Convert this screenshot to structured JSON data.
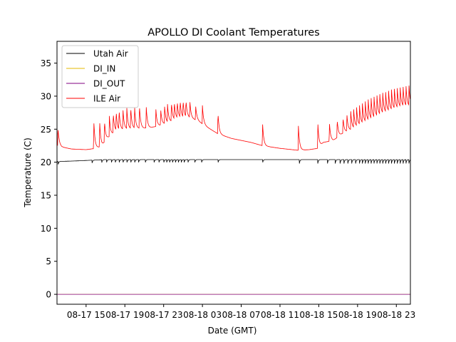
{
  "chart_data": {
    "type": "line",
    "title": "APOLLO DI Coolant Temperatures",
    "xlabel": "Date (GMT)",
    "ylabel": "Temperature (C)",
    "x_units": "hours since 08-17 00:00 GMT",
    "xlim": [
      12.0,
      48.45
    ],
    "ylim": [
      -1.5,
      38.3
    ],
    "x_ticks": [
      {
        "value": 15,
        "label": "08-17 15"
      },
      {
        "value": 19,
        "label": "08-17 19"
      },
      {
        "value": 23,
        "label": "08-17 23"
      },
      {
        "value": 27,
        "label": "08-18 03"
      },
      {
        "value": 31,
        "label": "08-18 07"
      },
      {
        "value": 35,
        "label": "08-18 11"
      },
      {
        "value": 39,
        "label": "08-18 15"
      },
      {
        "value": 43,
        "label": "08-18 19"
      },
      {
        "value": 47,
        "label": "08-18 23"
      }
    ],
    "y_ticks": [
      0,
      5,
      10,
      15,
      20,
      25,
      30,
      35
    ],
    "grid": false,
    "legend_position": "top-left",
    "series": [
      {
        "name": "Utah Air",
        "color": "#000000",
        "baseline": [
          [
            12.0,
            20.1
          ],
          [
            14.0,
            20.2
          ],
          [
            15.5,
            20.3
          ],
          [
            17.0,
            20.4
          ],
          [
            20.0,
            20.4
          ],
          [
            24.0,
            20.4
          ],
          [
            28.0,
            20.4
          ],
          [
            32.0,
            20.4
          ],
          [
            36.0,
            20.4
          ],
          [
            40.0,
            20.4
          ],
          [
            44.0,
            20.4
          ],
          [
            48.45,
            20.4
          ]
        ],
        "dip_times": [
          12.1,
          15.6,
          16.6,
          17.1,
          17.6,
          18.0,
          18.4,
          18.8,
          19.2,
          19.6,
          20.0,
          20.4,
          21.1,
          22.0,
          22.5,
          23.0,
          23.3,
          23.6,
          23.9,
          24.2,
          24.5,
          24.8,
          25.1,
          25.5,
          26.2,
          26.9,
          28.6,
          33.2,
          37.0,
          38.9,
          39.9,
          40.7,
          41.2,
          41.6,
          42.0,
          42.4,
          42.8,
          43.2,
          43.5,
          43.8,
          44.1,
          44.4,
          44.7,
          45.0,
          45.3,
          45.6,
          45.9,
          46.2,
          46.5,
          46.8,
          47.1,
          47.4,
          47.7,
          48.0,
          48.3
        ],
        "dip_depth": 0.6
      },
      {
        "name": "DI_IN",
        "color": "#e6b800",
        "points": [
          [
            12.0,
            0.0
          ],
          [
            48.45,
            0.0
          ]
        ]
      },
      {
        "name": "DI_OUT",
        "color": "#800080",
        "points": [
          [
            12.0,
            0.0
          ],
          [
            48.45,
            0.0
          ]
        ]
      },
      {
        "name": "ILE Air",
        "color": "#ff0000",
        "baseline": [
          [
            12.0,
            22.6
          ],
          [
            12.5,
            22.3
          ],
          [
            13.5,
            22.0
          ],
          [
            15.0,
            21.9
          ],
          [
            16.0,
            22.1
          ],
          [
            16.6,
            22.4
          ],
          [
            17.2,
            23.6
          ],
          [
            18.0,
            24.6
          ],
          [
            19.0,
            25.0
          ],
          [
            20.5,
            25.1
          ],
          [
            21.5,
            25.2
          ],
          [
            22.5,
            25.5
          ],
          [
            23.5,
            26.0
          ],
          [
            24.5,
            26.6
          ],
          [
            25.5,
            26.8
          ],
          [
            26.5,
            26.3
          ],
          [
            27.5,
            25.3
          ],
          [
            28.6,
            24.3
          ],
          [
            30.0,
            23.6
          ],
          [
            32.0,
            23.0
          ],
          [
            33.2,
            22.5
          ],
          [
            35.0,
            22.1
          ],
          [
            36.9,
            21.8
          ],
          [
            38.0,
            21.9
          ],
          [
            38.9,
            22.1
          ],
          [
            39.5,
            23.0
          ],
          [
            40.5,
            23.3
          ],
          [
            41.5,
            24.4
          ],
          [
            42.5,
            25.0
          ],
          [
            43.5,
            25.8
          ],
          [
            44.5,
            26.5
          ],
          [
            45.5,
            27.2
          ],
          [
            46.5,
            27.8
          ],
          [
            47.5,
            28.3
          ],
          [
            48.45,
            28.4
          ]
        ],
        "spikes": [
          [
            12.1,
            25.3
          ],
          [
            15.8,
            26.2
          ],
          [
            16.4,
            26.2
          ],
          [
            16.9,
            26.3
          ],
          [
            17.4,
            27.0
          ],
          [
            17.8,
            27.5
          ],
          [
            18.1,
            27.8
          ],
          [
            18.4,
            28.0
          ],
          [
            18.8,
            28.1
          ],
          [
            19.2,
            28.2
          ],
          [
            19.6,
            28.4
          ],
          [
            20.0,
            28.5
          ],
          [
            20.5,
            28.7
          ],
          [
            21.2,
            28.6
          ],
          [
            22.2,
            28.0
          ],
          [
            22.7,
            28.0
          ],
          [
            23.1,
            28.4
          ],
          [
            23.4,
            28.8
          ],
          [
            23.8,
            29.1
          ],
          [
            24.1,
            29.2
          ],
          [
            24.4,
            29.3
          ],
          [
            24.7,
            29.4
          ],
          [
            25.0,
            29.4
          ],
          [
            25.3,
            29.4
          ],
          [
            25.7,
            29.3
          ],
          [
            26.3,
            28.6
          ],
          [
            27.0,
            28.6
          ],
          [
            28.6,
            27.5
          ],
          [
            33.2,
            26.0
          ],
          [
            36.9,
            25.5
          ],
          [
            38.9,
            26.0
          ],
          [
            40.1,
            26.0
          ],
          [
            40.9,
            26.5
          ],
          [
            41.5,
            26.8
          ],
          [
            41.9,
            27.3
          ],
          [
            42.3,
            27.7
          ],
          [
            42.6,
            28.0
          ],
          [
            42.9,
            28.3
          ],
          [
            43.2,
            28.6
          ],
          [
            43.5,
            28.9
          ],
          [
            43.8,
            29.2
          ],
          [
            44.1,
            29.5
          ],
          [
            44.4,
            29.7
          ],
          [
            44.7,
            29.9
          ],
          [
            45.0,
            30.1
          ],
          [
            45.3,
            30.3
          ],
          [
            45.6,
            30.5
          ],
          [
            45.9,
            30.6
          ],
          [
            46.2,
            30.8
          ],
          [
            46.5,
            31.0
          ],
          [
            46.8,
            31.1
          ],
          [
            47.1,
            31.2
          ],
          [
            47.4,
            31.3
          ],
          [
            47.7,
            31.4
          ],
          [
            48.0,
            31.5
          ],
          [
            48.3,
            31.6
          ]
        ]
      }
    ]
  }
}
